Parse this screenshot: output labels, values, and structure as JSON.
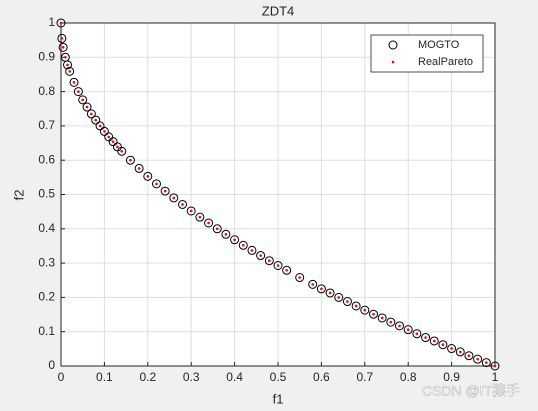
{
  "chart_data": {
    "type": "scatter",
    "title": "ZDT4",
    "x_label": "f1",
    "y_label": "f2",
    "xlim": [
      0,
      1
    ],
    "ylim": [
      0,
      1
    ],
    "xticks": [
      0,
      0.1,
      0.2,
      0.3,
      0.4,
      0.5,
      0.6,
      0.7,
      0.8,
      0.9,
      1
    ],
    "yticks": [
      0,
      0.1,
      0.2,
      0.3,
      0.4,
      0.5,
      0.6,
      0.7,
      0.8,
      0.9,
      1
    ],
    "grid": true,
    "legend_location": "northeast",
    "series": [
      {
        "name": "MOGTO",
        "marker": "circle",
        "color": "#000000",
        "x": [
          0,
          0.002,
          0.005,
          0.01,
          0.015,
          0.02,
          0.03,
          0.04,
          0.05,
          0.06,
          0.07,
          0.08,
          0.09,
          0.1,
          0.11,
          0.12,
          0.13,
          0.14,
          0.16,
          0.18,
          0.2,
          0.22,
          0.24,
          0.26,
          0.28,
          0.3,
          0.32,
          0.34,
          0.36,
          0.38,
          0.4,
          0.42,
          0.44,
          0.46,
          0.48,
          0.5,
          0.52,
          0.55,
          0.58,
          0.6,
          0.62,
          0.64,
          0.66,
          0.68,
          0.7,
          0.72,
          0.74,
          0.76,
          0.78,
          0.8,
          0.82,
          0.84,
          0.86,
          0.88,
          0.9,
          0.92,
          0.94,
          0.96,
          0.98,
          1
        ],
        "values": [
          1,
          0.955,
          0.929,
          0.9,
          0.878,
          0.859,
          0.827,
          0.8,
          0.776,
          0.755,
          0.735,
          0.717,
          0.7,
          0.684,
          0.668,
          0.654,
          0.639,
          0.626,
          0.6,
          0.576,
          0.553,
          0.531,
          0.51,
          0.49,
          0.471,
          0.452,
          0.434,
          0.417,
          0.4,
          0.384,
          0.368,
          0.352,
          0.337,
          0.322,
          0.307,
          0.293,
          0.279,
          0.258,
          0.238,
          0.225,
          0.213,
          0.2,
          0.188,
          0.175,
          0.163,
          0.151,
          0.14,
          0.128,
          0.117,
          0.106,
          0.094,
          0.083,
          0.073,
          0.062,
          0.051,
          0.041,
          0.03,
          0.02,
          0.01,
          0
        ]
      },
      {
        "name": "RealPareto",
        "marker": "dot",
        "color": "#ff0000",
        "x": [
          0,
          0.002,
          0.005,
          0.01,
          0.015,
          0.02,
          0.03,
          0.04,
          0.05,
          0.06,
          0.07,
          0.08,
          0.09,
          0.1,
          0.11,
          0.12,
          0.13,
          0.14,
          0.16,
          0.18,
          0.2,
          0.22,
          0.24,
          0.26,
          0.28,
          0.3,
          0.32,
          0.34,
          0.36,
          0.38,
          0.4,
          0.42,
          0.44,
          0.46,
          0.48,
          0.5,
          0.52,
          0.55,
          0.58,
          0.6,
          0.62,
          0.64,
          0.66,
          0.68,
          0.7,
          0.72,
          0.74,
          0.76,
          0.78,
          0.8,
          0.82,
          0.84,
          0.86,
          0.88,
          0.9,
          0.92,
          0.94,
          0.96,
          0.98,
          1
        ],
        "values": [
          1,
          0.955,
          0.929,
          0.9,
          0.878,
          0.859,
          0.827,
          0.8,
          0.776,
          0.755,
          0.735,
          0.717,
          0.7,
          0.684,
          0.668,
          0.654,
          0.639,
          0.626,
          0.6,
          0.576,
          0.553,
          0.531,
          0.51,
          0.49,
          0.471,
          0.452,
          0.434,
          0.417,
          0.4,
          0.384,
          0.368,
          0.352,
          0.337,
          0.322,
          0.307,
          0.293,
          0.279,
          0.258,
          0.238,
          0.225,
          0.213,
          0.2,
          0.188,
          0.175,
          0.163,
          0.151,
          0.14,
          0.128,
          0.117,
          0.106,
          0.094,
          0.083,
          0.073,
          0.062,
          0.051,
          0.041,
          0.03,
          0.02,
          0.01,
          0
        ]
      }
    ],
    "watermark": "CSDN @IT猿手"
  }
}
